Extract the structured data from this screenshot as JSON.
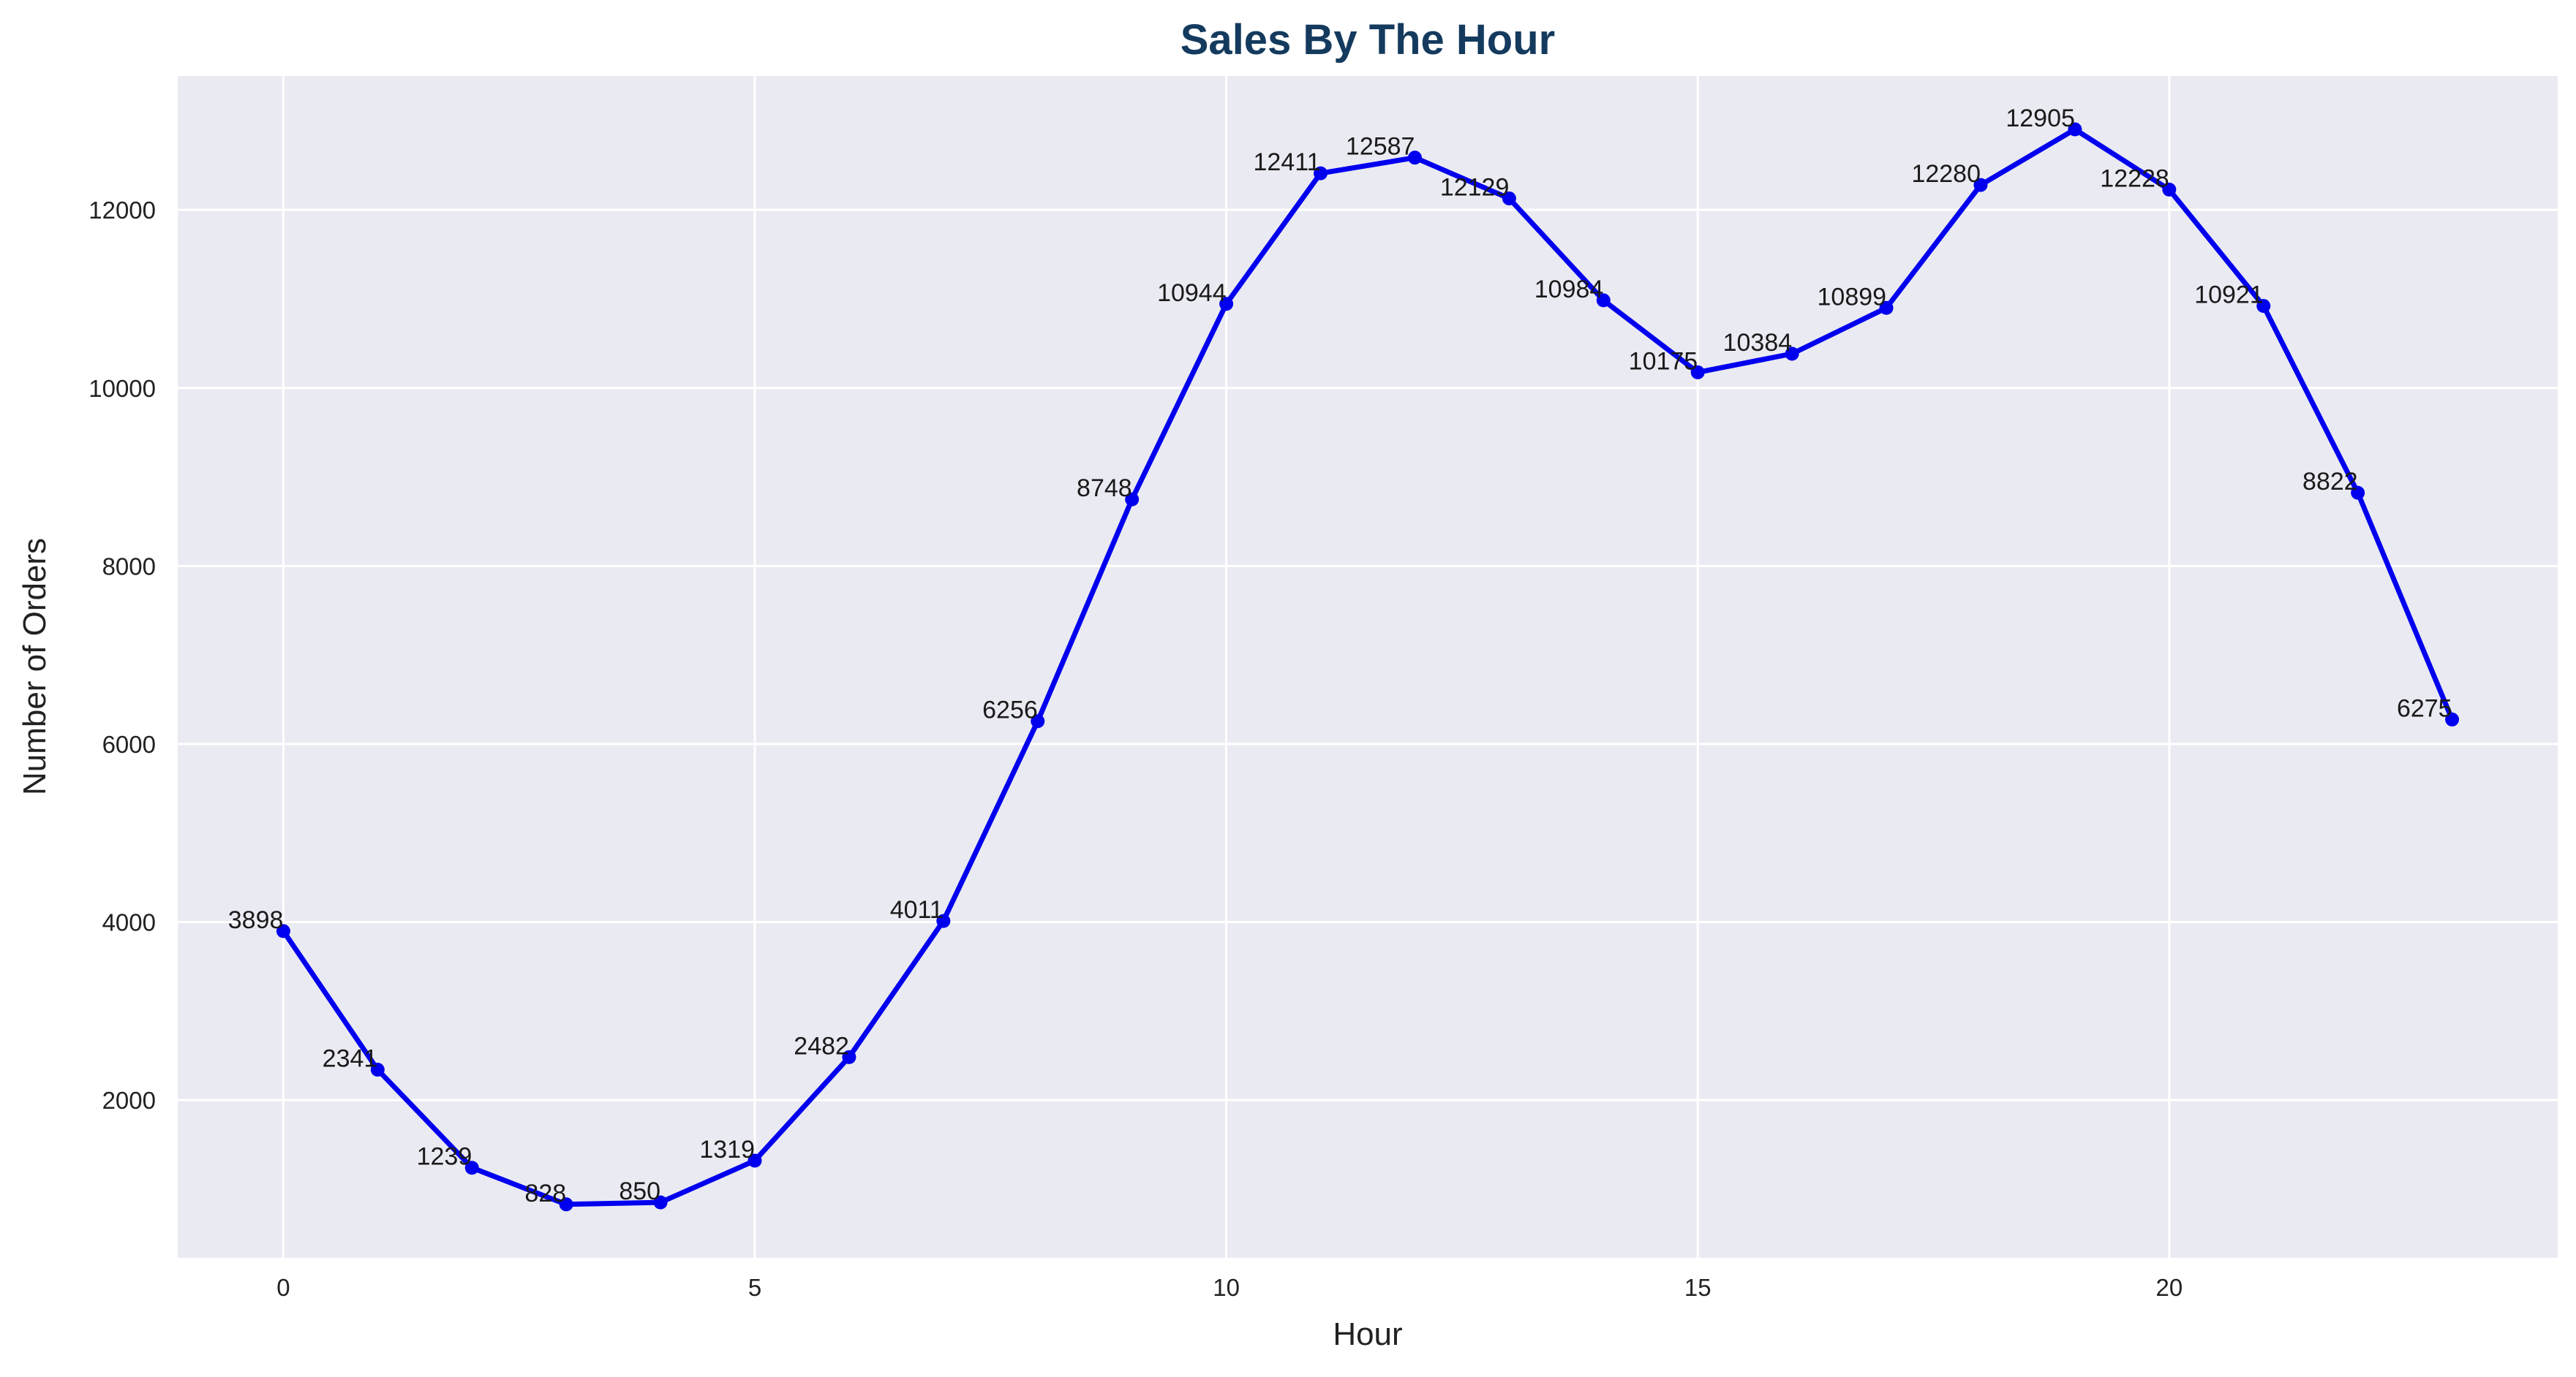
{
  "chart_data": {
    "type": "line",
    "title": "Sales By The Hour",
    "xlabel": "Hour",
    "ylabel": "Number of Orders",
    "xlim": [
      -1.12,
      24.12
    ],
    "ylim": [
      227,
      13504
    ],
    "xticks": [
      0,
      5,
      10,
      15,
      20
    ],
    "yticks": [
      2000,
      4000,
      6000,
      8000,
      10000,
      12000
    ],
    "grid": true,
    "legend": "none",
    "series": [
      {
        "color": "#0000ee",
        "marker": "circle",
        "x": [
          0,
          1,
          2,
          3,
          4,
          5,
          6,
          7,
          8,
          9,
          10,
          11,
          12,
          13,
          14,
          15,
          16,
          17,
          18,
          19,
          20,
          21,
          22,
          23
        ],
        "values": [
          3898,
          2341,
          1239,
          828,
          850,
          1319,
          2482,
          4011,
          6256,
          8748,
          10944,
          12411,
          12587,
          12129,
          10984,
          10175,
          10384,
          10899,
          12280,
          12905,
          12228,
          10921,
          8822,
          6275
        ]
      }
    ],
    "data_labels": [
      "3898",
      "2341",
      "1239",
      "828",
      "850",
      "1319",
      "2482",
      "4011",
      "6256",
      "8748",
      "10944",
      "12411",
      "12587",
      "12129",
      "10984",
      "10175",
      "10384",
      "10899",
      "12280",
      "12905",
      "12228",
      "10921",
      "8822",
      "6275"
    ]
  },
  "colors": {
    "plot_background": "#eaeaf2",
    "grid": "#ffffff",
    "line": "#0000ee",
    "title": "#143a5e"
  }
}
